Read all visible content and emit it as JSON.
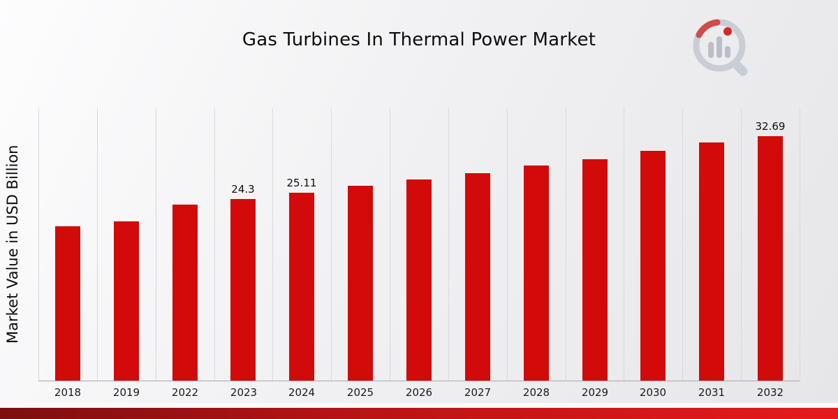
{
  "chart_data": {
    "type": "bar",
    "title": "Gas Turbines In Thermal Power Market",
    "xlabel": "",
    "ylabel": "Market Value in USD Billion",
    "categories": [
      "2018",
      "2019",
      "2022",
      "2023",
      "2024",
      "2025",
      "2026",
      "2027",
      "2028",
      "2029",
      "2030",
      "2031",
      "2032"
    ],
    "values": [
      20.6,
      21.3,
      23.5,
      24.3,
      25.11,
      26.0,
      26.9,
      27.7,
      28.7,
      29.6,
      30.7,
      31.8,
      32.69
    ],
    "data_labels": [
      "",
      "",
      "",
      "24.3",
      "25.11",
      "",
      "",
      "",
      "",
      "",
      "",
      "",
      "32.69"
    ],
    "ylim": [
      0,
      36.4
    ],
    "bar_color": "#d20a0a",
    "grid": "vertical",
    "legend": "none",
    "unit": "USD Billion"
  },
  "branding": {
    "logo_name": "market-research-logo",
    "accent_color": "#d20a0a",
    "footer_bar_colors": [
      "#7d0f10",
      "#e61a1c"
    ]
  }
}
